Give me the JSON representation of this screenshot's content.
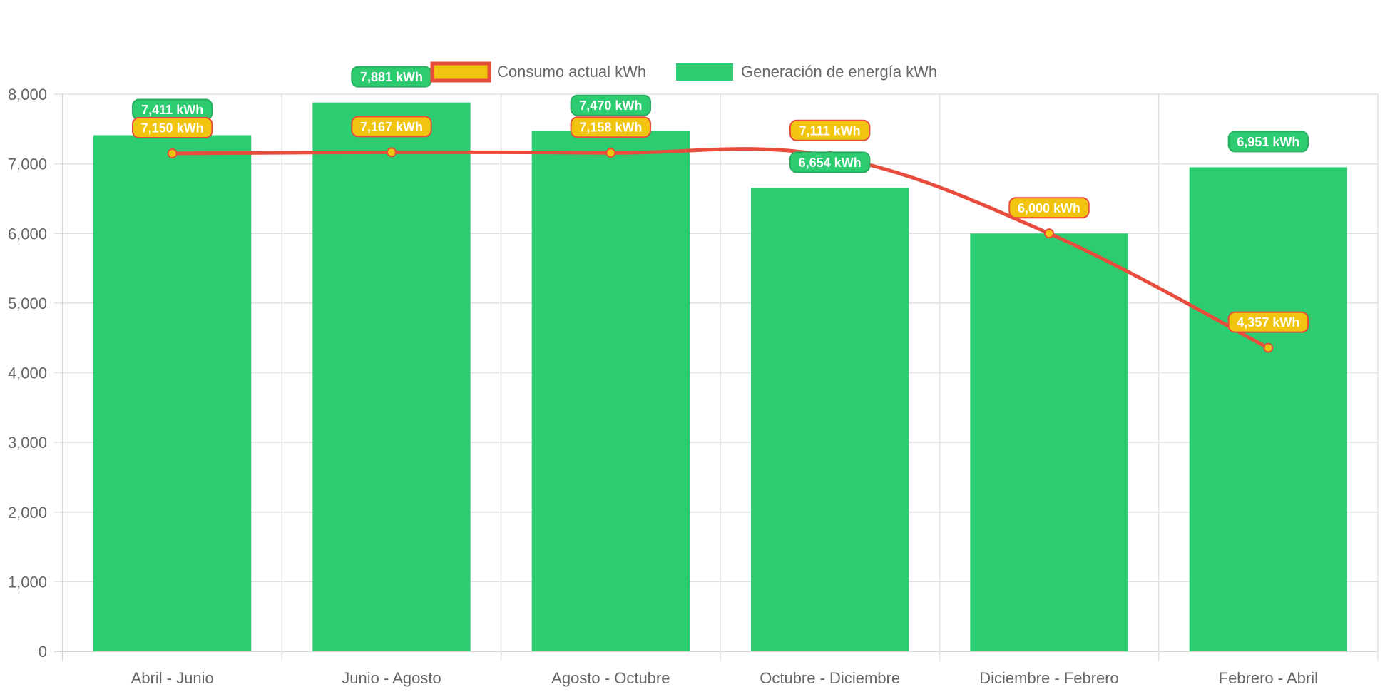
{
  "chart_data": {
    "type": "bar",
    "categories": [
      "Abril - Junio",
      "Junio - Agosto",
      "Agosto - Octubre",
      "Octubre - Diciembre",
      "Diciembre - Febrero",
      "Febrero - Abril"
    ],
    "series": [
      {
        "name": "Consumo actual kWh",
        "type": "line",
        "values": [
          7150,
          7167,
          7158,
          7111,
          6000,
          4357
        ],
        "labels": [
          "7,150 kWh",
          "7,167 kWh",
          "7,158 kWh",
          "7,111 kWh",
          "6,000 kWh",
          "4,357 kWh"
        ],
        "color": "#e74c3c",
        "point_color": "#f1c40f"
      },
      {
        "name": "Generación de energía kWh",
        "type": "bar",
        "values": [
          7411,
          7881,
          7470,
          6654,
          6000,
          6951
        ],
        "labels": [
          "7,411 kWh",
          "7,881 kWh",
          "7,470 kWh",
          "6,654 kWh",
          "",
          "6,951 kWh"
        ],
        "color": "#2ecc71"
      }
    ],
    "y_ticks": [
      "0",
      "1,000",
      "2,000",
      "3,000",
      "4,000",
      "5,000",
      "6,000",
      "7,000",
      "8,000"
    ],
    "ylim": [
      0,
      8000
    ],
    "grid": true,
    "legend_position": "top"
  }
}
